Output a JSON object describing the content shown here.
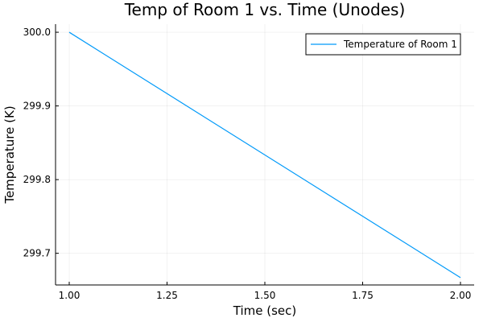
{
  "chart_data": {
    "type": "line",
    "title": "Temp of Room 1 vs. Time (Unodes)",
    "xlabel": "Time (sec)",
    "ylabel": "Temperature (K)",
    "xlim": [
      0.965,
      2.035
    ],
    "ylim": [
      299.657,
      300.011
    ],
    "xticks": [
      1.0,
      1.25,
      1.5,
      1.75,
      2.0
    ],
    "xtick_labels": [
      "1.00",
      "1.25",
      "1.50",
      "1.75",
      "2.00"
    ],
    "yticks": [
      299.7,
      299.8,
      299.9,
      300.0
    ],
    "ytick_labels": [
      "299.7",
      "299.8",
      "299.9",
      "300.0"
    ],
    "grid": true,
    "legend_position": "top-right",
    "series": [
      {
        "name": "Temperature of Room 1",
        "color": "#009af9",
        "x": [
          1.0,
          2.0
        ],
        "y": [
          300.0,
          299.667
        ]
      }
    ]
  }
}
